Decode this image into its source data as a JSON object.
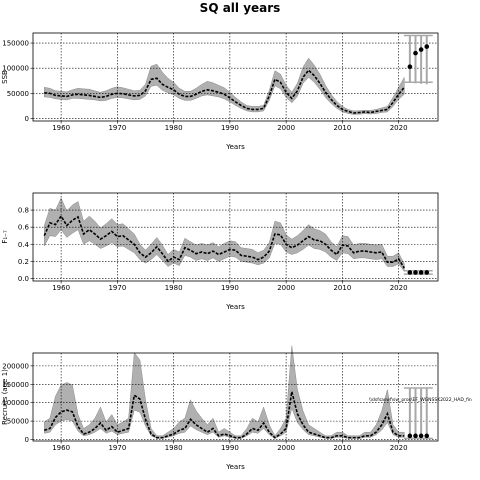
{
  "figure": {
    "title": "SQ all years"
  },
  "annotation": "\\\\dsfsaswf\\sw_pros\\EF_WGNSSK2022_HAD_fin",
  "chart_data": [
    {
      "type": "line",
      "ylabel": "SSB",
      "xlabel": "Years",
      "xlim": [
        1955,
        2027
      ],
      "ylim": [
        -5000,
        170000
      ],
      "xticks": [
        1960,
        1970,
        1980,
        1990,
        2000,
        2010,
        2020
      ],
      "yticks": [
        0,
        50000,
        100000,
        150000
      ],
      "ytick_labels": [
        "0",
        "50000",
        "100000",
        "150000"
      ],
      "grid": true,
      "x": [
        1957,
        1958,
        1959,
        1960,
        1961,
        1962,
        1963,
        1964,
        1965,
        1966,
        1967,
        1968,
        1969,
        1970,
        1971,
        1972,
        1973,
        1974,
        1975,
        1976,
        1977,
        1978,
        1979,
        1980,
        1981,
        1982,
        1983,
        1984,
        1985,
        1986,
        1987,
        1988,
        1989,
        1990,
        1991,
        1992,
        1993,
        1994,
        1995,
        1996,
        1997,
        1998,
        1999,
        2000,
        2001,
        2002,
        2003,
        2004,
        2005,
        2006,
        2007,
        2008,
        2009,
        2010,
        2011,
        2012,
        2013,
        2014,
        2015,
        2016,
        2017,
        2018,
        2019,
        2020,
        2021
      ],
      "estimate": [
        51000,
        50000,
        46000,
        45000,
        44000,
        47000,
        48000,
        47000,
        46000,
        44000,
        42000,
        44000,
        48000,
        50000,
        49000,
        47000,
        45000,
        46000,
        55000,
        78000,
        80000,
        68000,
        62000,
        57000,
        48000,
        44000,
        44000,
        48000,
        54000,
        57000,
        55000,
        52000,
        48000,
        41000,
        33000,
        26000,
        20000,
        18000,
        18000,
        20000,
        45000,
        78000,
        72000,
        52000,
        40000,
        55000,
        82000,
        96000,
        85000,
        70000,
        52000,
        38000,
        26000,
        18000,
        14000,
        11000,
        12000,
        13000,
        12000,
        14000,
        16000,
        18000,
        32000,
        48000,
        62000
      ],
      "lower": [
        43000,
        42000,
        39000,
        38000,
        37000,
        40000,
        40000,
        39000,
        38000,
        37000,
        35000,
        36000,
        40000,
        42000,
        41000,
        39000,
        37000,
        38000,
        45000,
        64000,
        66000,
        56000,
        51000,
        47000,
        40000,
        36000,
        36000,
        40000,
        45000,
        47000,
        45000,
        43000,
        39000,
        33000,
        26000,
        20000,
        15000,
        13000,
        13000,
        15000,
        36000,
        65000,
        59000,
        42000,
        31000,
        44000,
        70000,
        82000,
        72000,
        58000,
        42000,
        30000,
        20000,
        13000,
        10000,
        8000,
        8500,
        9500,
        9000,
        10000,
        12000,
        13000,
        24000,
        38000,
        48000
      ],
      "upper": [
        62000,
        60000,
        55000,
        54000,
        53000,
        57000,
        60000,
        59000,
        58000,
        55000,
        52000,
        55000,
        60000,
        63000,
        61000,
        58000,
        55000,
        56000,
        68000,
        104000,
        108000,
        92000,
        80000,
        72000,
        60000,
        54000,
        54000,
        60000,
        68000,
        74000,
        71000,
        66000,
        61000,
        52000,
        42000,
        33000,
        26000,
        24000,
        24000,
        26000,
        56000,
        95000,
        88000,
        66000,
        52000,
        70000,
        102000,
        120000,
        106000,
        88000,
        66000,
        48000,
        34000,
        24000,
        18000,
        15000,
        15500,
        16500,
        16000,
        18000,
        21000,
        24000,
        42000,
        62000,
        82000
      ],
      "projection": {
        "x": [
          2022,
          2023,
          2024,
          2025
        ],
        "values": [
          103000,
          130000,
          137000,
          143000
        ],
        "upper": [
          165000,
          165000,
          165000,
          165000
        ],
        "lower": [
          72000,
          70000,
          69000,
          68000
        ]
      }
    },
    {
      "type": "line",
      "ylabel": "F₁₋₇",
      "xlabel": "Years",
      "xlim": [
        1955,
        2027
      ],
      "ylim": [
        -0.03,
        1.0
      ],
      "xticks": [
        1960,
        1970,
        1980,
        1990,
        2000,
        2010,
        2020
      ],
      "yticks": [
        0.0,
        0.2,
        0.4,
        0.6,
        0.8
      ],
      "ytick_labels": [
        "0.0",
        "0.2",
        "0.4",
        "0.6",
        "0.8"
      ],
      "grid": true,
      "x": [
        1957,
        1958,
        1959,
        1960,
        1961,
        1962,
        1963,
        1964,
        1965,
        1966,
        1967,
        1968,
        1969,
        1970,
        1971,
        1972,
        1973,
        1974,
        1975,
        1976,
        1977,
        1978,
        1979,
        1980,
        1981,
        1982,
        1983,
        1984,
        1985,
        1986,
        1987,
        1988,
        1989,
        1990,
        1991,
        1992,
        1993,
        1994,
        1995,
        1996,
        1997,
        1998,
        1999,
        2000,
        2001,
        2002,
        2003,
        2004,
        2005,
        2006,
        2007,
        2008,
        2009,
        2010,
        2011,
        2012,
        2013,
        2014,
        2015,
        2016,
        2017,
        2018,
        2019,
        2020,
        2021
      ],
      "estimate": [
        0.5,
        0.65,
        0.63,
        0.73,
        0.62,
        0.68,
        0.72,
        0.52,
        0.57,
        0.52,
        0.46,
        0.5,
        0.55,
        0.49,
        0.5,
        0.45,
        0.4,
        0.3,
        0.25,
        0.3,
        0.37,
        0.29,
        0.2,
        0.25,
        0.22,
        0.36,
        0.33,
        0.29,
        0.31,
        0.29,
        0.32,
        0.28,
        0.31,
        0.34,
        0.33,
        0.27,
        0.26,
        0.25,
        0.22,
        0.25,
        0.32,
        0.52,
        0.51,
        0.4,
        0.36,
        0.39,
        0.44,
        0.49,
        0.45,
        0.44,
        0.4,
        0.33,
        0.28,
        0.39,
        0.38,
        0.3,
        0.32,
        0.32,
        0.31,
        0.3,
        0.31,
        0.19,
        0.19,
        0.23,
        0.12
      ],
      "lower": [
        0.38,
        0.5,
        0.49,
        0.57,
        0.48,
        0.53,
        0.57,
        0.4,
        0.44,
        0.4,
        0.35,
        0.38,
        0.42,
        0.37,
        0.38,
        0.34,
        0.3,
        0.22,
        0.18,
        0.22,
        0.28,
        0.21,
        0.14,
        0.18,
        0.15,
        0.27,
        0.25,
        0.21,
        0.23,
        0.21,
        0.24,
        0.2,
        0.23,
        0.26,
        0.25,
        0.2,
        0.19,
        0.18,
        0.16,
        0.18,
        0.24,
        0.41,
        0.4,
        0.31,
        0.28,
        0.3,
        0.34,
        0.39,
        0.35,
        0.34,
        0.31,
        0.25,
        0.21,
        0.3,
        0.29,
        0.23,
        0.24,
        0.24,
        0.23,
        0.22,
        0.23,
        0.14,
        0.14,
        0.17,
        0.08
      ],
      "upper": [
        0.62,
        0.82,
        0.8,
        0.94,
        0.79,
        0.86,
        0.9,
        0.67,
        0.73,
        0.67,
        0.59,
        0.64,
        0.7,
        0.63,
        0.64,
        0.58,
        0.52,
        0.4,
        0.33,
        0.4,
        0.48,
        0.39,
        0.28,
        0.34,
        0.31,
        0.47,
        0.43,
        0.39,
        0.41,
        0.39,
        0.42,
        0.37,
        0.41,
        0.44,
        0.43,
        0.36,
        0.35,
        0.34,
        0.3,
        0.33,
        0.42,
        0.67,
        0.65,
        0.51,
        0.46,
        0.5,
        0.56,
        0.63,
        0.58,
        0.56,
        0.52,
        0.43,
        0.37,
        0.5,
        0.49,
        0.39,
        0.41,
        0.41,
        0.4,
        0.39,
        0.4,
        0.26,
        0.26,
        0.3,
        0.17
      ],
      "projection": {
        "x": [
          2022,
          2023,
          2024,
          2025
        ],
        "values": [
          0.07,
          0.07,
          0.07,
          0.07
        ],
        "upper": [
          0.09,
          0.09,
          0.09,
          0.09
        ],
        "lower": [
          0.05,
          0.05,
          0.05,
          0.05
        ]
      }
    },
    {
      "type": "line",
      "ylabel": "Recruits (age 1)",
      "xlabel": "Years",
      "xlim": [
        1955,
        2027
      ],
      "ylim": [
        -4000,
        235000
      ],
      "xticks": [
        1960,
        1970,
        1980,
        1990,
        2000,
        2010,
        2020
      ],
      "yticks": [
        0,
        50000,
        100000,
        150000,
        200000
      ],
      "ytick_labels": [
        "0",
        "50000",
        "100000",
        "150000",
        "200000"
      ],
      "grid": true,
      "x": [
        1957,
        1958,
        1959,
        1960,
        1961,
        1962,
        1963,
        1964,
        1965,
        1966,
        1967,
        1968,
        1969,
        1970,
        1971,
        1972,
        1973,
        1974,
        1975,
        1976,
        1977,
        1978,
        1979,
        1980,
        1981,
        1982,
        1983,
        1984,
        1985,
        1986,
        1987,
        1988,
        1989,
        1990,
        1991,
        1992,
        1993,
        1994,
        1995,
        1996,
        1997,
        1998,
        1999,
        2000,
        2001,
        2002,
        2003,
        2004,
        2005,
        2006,
        2007,
        2008,
        2009,
        2010,
        2011,
        2012,
        2013,
        2014,
        2015,
        2016,
        2017,
        2018,
        2019,
        2020,
        2021
      ],
      "estimate": [
        25000,
        30000,
        60000,
        75000,
        80000,
        75000,
        35000,
        15000,
        20000,
        30000,
        45000,
        25000,
        35000,
        20000,
        25000,
        30000,
        120000,
        110000,
        55000,
        15000,
        5000,
        5000,
        10000,
        15000,
        25000,
        30000,
        55000,
        40000,
        30000,
        20000,
        30000,
        10000,
        15000,
        10000,
        5000,
        5000,
        15000,
        30000,
        25000,
        45000,
        20000,
        5000,
        15000,
        30000,
        130000,
        70000,
        40000,
        20000,
        15000,
        10000,
        5000,
        5000,
        10000,
        10000,
        5000,
        5000,
        5000,
        10000,
        10000,
        20000,
        40000,
        70000,
        20000,
        10000,
        10000
      ],
      "lower": [
        17000,
        20000,
        40000,
        50000,
        54000,
        50000,
        23000,
        10000,
        13000,
        20000,
        30000,
        17000,
        23000,
        13000,
        17000,
        20000,
        80000,
        74000,
        37000,
        10000,
        3000,
        3000,
        6000,
        10000,
        17000,
        20000,
        37000,
        27000,
        20000,
        13000,
        20000,
        6000,
        10000,
        6000,
        3000,
        3000,
        10000,
        20000,
        17000,
        30000,
        13000,
        3000,
        10000,
        20000,
        85000,
        46000,
        27000,
        13000,
        10000,
        6000,
        3000,
        3000,
        6000,
        6000,
        3000,
        3000,
        3000,
        6000,
        6000,
        13000,
        26000,
        46000,
        13000,
        6000,
        6000
      ],
      "upper": [
        48000,
        58000,
        118000,
        148000,
        155000,
        148000,
        68000,
        30000,
        40000,
        58000,
        88000,
        48000,
        68000,
        40000,
        48000,
        58000,
        236000,
        216000,
        108000,
        30000,
        10000,
        10000,
        20000,
        30000,
        48000,
        58000,
        108000,
        78000,
        58000,
        40000,
        58000,
        20000,
        30000,
        20000,
        10000,
        10000,
        30000,
        58000,
        48000,
        88000,
        40000,
        10000,
        30000,
        58000,
        255000,
        136000,
        78000,
        40000,
        30000,
        20000,
        10000,
        10000,
        20000,
        20000,
        10000,
        10000,
        10000,
        20000,
        20000,
        40000,
        78000,
        136000,
        40000,
        20000,
        20000
      ],
      "projection": {
        "x": [
          2022,
          2023,
          2024,
          2025
        ],
        "values": [
          10000,
          10000,
          10000,
          10000
        ],
        "upper": [
          140000,
          140000,
          140000,
          140000
        ],
        "lower": [
          3000,
          3000,
          3000,
          3000
        ]
      }
    }
  ]
}
